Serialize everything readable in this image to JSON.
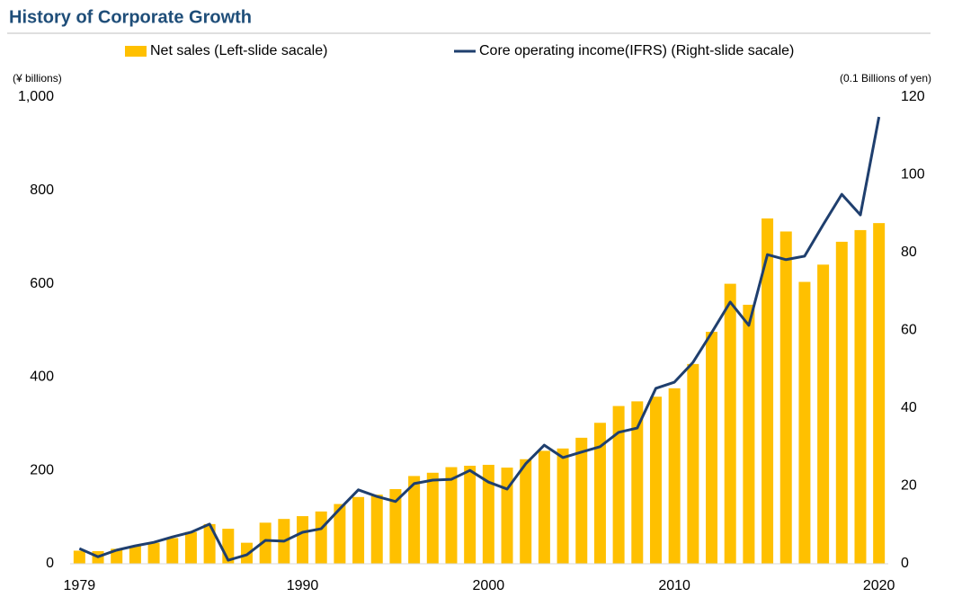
{
  "chart_data": {
    "type": "bar",
    "title": "History of Corporate Growth",
    "ylabel": "(¥ billions)",
    "y2label": "(0.1 Billions of yen)",
    "categories": [
      "1979",
      null,
      null,
      null,
      null,
      null,
      null,
      null,
      null,
      null,
      null,
      null,
      "1990",
      null,
      null,
      null,
      null,
      null,
      null,
      null,
      null,
      null,
      "2000",
      null,
      null,
      null,
      null,
      null,
      null,
      null,
      null,
      null,
      "2010",
      null,
      null,
      null,
      null,
      null,
      null,
      null,
      null,
      null,
      null,
      "2020"
    ],
    "series": [
      {
        "name": "Net sales (Left-slide sacale)",
        "type": "bar",
        "color": "#ffc000",
        "values": [
          28,
          27,
          32,
          38,
          45,
          55,
          68,
          85,
          75,
          45,
          88,
          96,
          102,
          112,
          128,
          143,
          148,
          160,
          188,
          195,
          207,
          210,
          212,
          206,
          224,
          242,
          247,
          270,
          302,
          338,
          348,
          358,
          376,
          428,
          497,
          600,
          555,
          740,
          712,
          604,
          641,
          690,
          715,
          730
        ]
      },
      {
        "name": "Core operating income(IFRS) (Right-slide sacale)",
        "type": "line",
        "axis": "y2",
        "color": "#1f3f6e",
        "values": [
          3.9,
          1.8,
          3.5,
          4.6,
          5.5,
          6.9,
          8.1,
          10.2,
          0.9,
          2.3,
          6.0,
          5.8,
          8.1,
          9.0,
          14.1,
          19.0,
          17.3,
          16.0,
          20.6,
          21.5,
          21.7,
          24.0,
          21.0,
          19.2,
          25.7,
          30.5,
          27.3,
          28.7,
          30.1,
          33.8,
          34.9,
          45.1,
          46.7,
          51.8,
          59.4,
          67.3,
          61.3,
          79.5,
          78.2,
          79.1,
          87.2,
          95.0,
          89.7,
          114.9
        ]
      }
    ],
    "ylim": [
      0,
      1000
    ],
    "yticks": [
      0,
      200,
      400,
      600,
      800,
      {
        "value": 1000,
        "label": "1,000"
      }
    ],
    "y2lim": [
      0,
      120
    ],
    "y2ticks": [
      0,
      20,
      40,
      60,
      80,
      100,
      120
    ],
    "legend": "top",
    "grid": false
  }
}
